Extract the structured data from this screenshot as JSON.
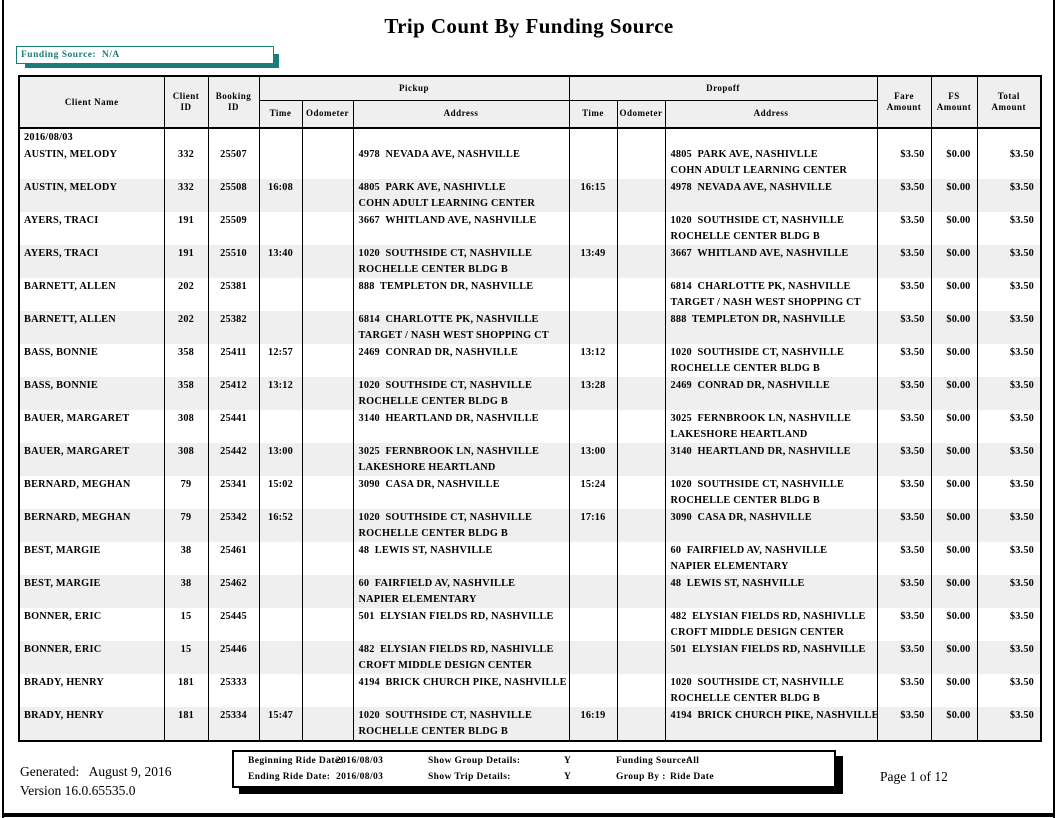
{
  "page": {
    "title": "Trip Count By Funding Source",
    "generated_line": "Generated:   August 9, 2016",
    "version_line": "Version 16.0.65535.0",
    "page_label": "Page 1 of 12"
  },
  "colors": {
    "accent_teal": "#1b7c7c",
    "row_shade": "#efefef",
    "header_shade": "#efefef"
  },
  "funding_box": {
    "label": "Funding Source:  N/A"
  },
  "table": {
    "group_headers": {
      "pickup": "Pickup",
      "dropoff": "Dropoff"
    },
    "columns": {
      "client_name": "Client Name",
      "client_id": "Client ID",
      "booking_id": "Booking ID",
      "time": "Time",
      "odometer": "Odometer",
      "address": "Address",
      "fare_amount": "Fare Amount",
      "fs_amount": "FS Amount",
      "total_amount": "Total Amount"
    },
    "group_date": "2016/08/03",
    "rows": [
      {
        "client_name": "AUSTIN, MELODY",
        "client_id": "332",
        "booking_id": "25507",
        "pickup_time": "",
        "pickup_odometer": "",
        "pickup_address_1": "4978  NEVADA AVE, NASHVILLE",
        "pickup_address_2": "",
        "dropoff_time": "",
        "dropoff_odometer": "",
        "dropoff_address_1": "4805  PARK AVE, NASHIVLLE",
        "dropoff_address_2": "COHN ADULT LEARNING CENTER",
        "fare_amount": "$3.50",
        "fs_amount": "$0.00",
        "total_amount": "$3.50"
      },
      {
        "client_name": "AUSTIN, MELODY",
        "client_id": "332",
        "booking_id": "25508",
        "pickup_time": "16:08",
        "pickup_odometer": "",
        "pickup_address_1": "4805  PARK AVE, NASHIVLLE",
        "pickup_address_2": "COHN ADULT LEARNING CENTER",
        "dropoff_time": "16:15",
        "dropoff_odometer": "",
        "dropoff_address_1": "4978  NEVADA AVE, NASHVILLE",
        "dropoff_address_2": "",
        "fare_amount": "$3.50",
        "fs_amount": "$0.00",
        "total_amount": "$3.50"
      },
      {
        "client_name": "AYERS, TRACI",
        "client_id": "191",
        "booking_id": "25509",
        "pickup_time": "",
        "pickup_odometer": "",
        "pickup_address_1": "3667  WHITLAND AVE, NASHVILLE",
        "pickup_address_2": "",
        "dropoff_time": "",
        "dropoff_odometer": "",
        "dropoff_address_1": "1020  SOUTHSIDE CT, NASHVILLE",
        "dropoff_address_2": "ROCHELLE CENTER BLDG B",
        "fare_amount": "$3.50",
        "fs_amount": "$0.00",
        "total_amount": "$3.50"
      },
      {
        "client_name": "AYERS, TRACI",
        "client_id": "191",
        "booking_id": "25510",
        "pickup_time": "13:40",
        "pickup_odometer": "",
        "pickup_address_1": "1020  SOUTHSIDE CT, NASHVILLE",
        "pickup_address_2": "ROCHELLE CENTER BLDG B",
        "dropoff_time": "13:49",
        "dropoff_odometer": "",
        "dropoff_address_1": "3667  WHITLAND AVE, NASHVILLE",
        "dropoff_address_2": "",
        "fare_amount": "$3.50",
        "fs_amount": "$0.00",
        "total_amount": "$3.50"
      },
      {
        "client_name": "BARNETT, ALLEN",
        "client_id": "202",
        "booking_id": "25381",
        "pickup_time": "",
        "pickup_odometer": "",
        "pickup_address_1": "888  TEMPLETON DR, NASHVILLE",
        "pickup_address_2": "",
        "dropoff_time": "",
        "dropoff_odometer": "",
        "dropoff_address_1": "6814  CHARLOTTE PK, NASHVILLE",
        "dropoff_address_2": "TARGET / NASH WEST SHOPPING CT",
        "fare_amount": "$3.50",
        "fs_amount": "$0.00",
        "total_amount": "$3.50"
      },
      {
        "client_name": "BARNETT, ALLEN",
        "client_id": "202",
        "booking_id": "25382",
        "pickup_time": "",
        "pickup_odometer": "",
        "pickup_address_1": "6814  CHARLOTTE PK, NASHVILLE",
        "pickup_address_2": "TARGET / NASH WEST SHOPPING CT",
        "dropoff_time": "",
        "dropoff_odometer": "",
        "dropoff_address_1": "888  TEMPLETON DR, NASHVILLE",
        "dropoff_address_2": "",
        "fare_amount": "$3.50",
        "fs_amount": "$0.00",
        "total_amount": "$3.50"
      },
      {
        "client_name": "BASS, BONNIE",
        "client_id": "358",
        "booking_id": "25411",
        "pickup_time": "12:57",
        "pickup_odometer": "",
        "pickup_address_1": "2469  CONRAD DR, NASHVILLE",
        "pickup_address_2": "",
        "dropoff_time": "13:12",
        "dropoff_odometer": "",
        "dropoff_address_1": "1020  SOUTHSIDE CT, NASHVILLE",
        "dropoff_address_2": "ROCHELLE CENTER BLDG B",
        "fare_amount": "$3.50",
        "fs_amount": "$0.00",
        "total_amount": "$3.50"
      },
      {
        "client_name": "BASS, BONNIE",
        "client_id": "358",
        "booking_id": "25412",
        "pickup_time": "13:12",
        "pickup_odometer": "",
        "pickup_address_1": "1020  SOUTHSIDE CT, NASHVILLE",
        "pickup_address_2": "ROCHELLE CENTER BLDG B",
        "dropoff_time": "13:28",
        "dropoff_odometer": "",
        "dropoff_address_1": "2469  CONRAD DR, NASHVILLE",
        "dropoff_address_2": "",
        "fare_amount": "$3.50",
        "fs_amount": "$0.00",
        "total_amount": "$3.50"
      },
      {
        "client_name": "BAUER, MARGARET",
        "client_id": "308",
        "booking_id": "25441",
        "pickup_time": "",
        "pickup_odometer": "",
        "pickup_address_1": "3140  HEARTLAND DR, NASHVILLE",
        "pickup_address_2": "",
        "dropoff_time": "",
        "dropoff_odometer": "",
        "dropoff_address_1": "3025  FERNBROOK LN, NASHVILLE",
        "dropoff_address_2": "LAKESHORE HEARTLAND",
        "fare_amount": "$3.50",
        "fs_amount": "$0.00",
        "total_amount": "$3.50"
      },
      {
        "client_name": "BAUER, MARGARET",
        "client_id": "308",
        "booking_id": "25442",
        "pickup_time": "13:00",
        "pickup_odometer": "",
        "pickup_address_1": "3025  FERNBROOK LN, NASHVILLE",
        "pickup_address_2": "LAKESHORE HEARTLAND",
        "dropoff_time": "13:00",
        "dropoff_odometer": "",
        "dropoff_address_1": "3140  HEARTLAND DR, NASHVILLE",
        "dropoff_address_2": "",
        "fare_amount": "$3.50",
        "fs_amount": "$0.00",
        "total_amount": "$3.50"
      },
      {
        "client_name": "BERNARD, MEGHAN",
        "client_id": "79",
        "booking_id": "25341",
        "pickup_time": "15:02",
        "pickup_odometer": "",
        "pickup_address_1": "3090  CASA DR, NASHVILLE",
        "pickup_address_2": "",
        "dropoff_time": "15:24",
        "dropoff_odometer": "",
        "dropoff_address_1": "1020  SOUTHSIDE CT, NASHVILLE",
        "dropoff_address_2": "ROCHELLE CENTER BLDG B",
        "fare_amount": "$3.50",
        "fs_amount": "$0.00",
        "total_amount": "$3.50"
      },
      {
        "client_name": "BERNARD, MEGHAN",
        "client_id": "79",
        "booking_id": "25342",
        "pickup_time": "16:52",
        "pickup_odometer": "",
        "pickup_address_1": "1020  SOUTHSIDE CT, NASHVILLE",
        "pickup_address_2": "ROCHELLE CENTER BLDG B",
        "dropoff_time": "17:16",
        "dropoff_odometer": "",
        "dropoff_address_1": "3090  CASA DR, NASHVILLE",
        "dropoff_address_2": "",
        "fare_amount": "$3.50",
        "fs_amount": "$0.00",
        "total_amount": "$3.50"
      },
      {
        "client_name": "BEST, MARGIE",
        "client_id": "38",
        "booking_id": "25461",
        "pickup_time": "",
        "pickup_odometer": "",
        "pickup_address_1": "48  LEWIS ST, NASHVILLE",
        "pickup_address_2": "",
        "dropoff_time": "",
        "dropoff_odometer": "",
        "dropoff_address_1": "60  FAIRFIELD AV, NASHVILLE",
        "dropoff_address_2": "NAPIER ELEMENTARY",
        "fare_amount": "$3.50",
        "fs_amount": "$0.00",
        "total_amount": "$3.50"
      },
      {
        "client_name": "BEST, MARGIE",
        "client_id": "38",
        "booking_id": "25462",
        "pickup_time": "",
        "pickup_odometer": "",
        "pickup_address_1": "60  FAIRFIELD AV, NASHVILLE",
        "pickup_address_2": "NAPIER ELEMENTARY",
        "dropoff_time": "",
        "dropoff_odometer": "",
        "dropoff_address_1": "48  LEWIS ST, NASHVILLE",
        "dropoff_address_2": "",
        "fare_amount": "$3.50",
        "fs_amount": "$0.00",
        "total_amount": "$3.50"
      },
      {
        "client_name": "BONNER, ERIC",
        "client_id": "15",
        "booking_id": "25445",
        "pickup_time": "",
        "pickup_odometer": "",
        "pickup_address_1": "501  ELYSIAN FIELDS RD, NASHVILLE",
        "pickup_address_2": "",
        "dropoff_time": "",
        "dropoff_odometer": "",
        "dropoff_address_1": "482  ELYSIAN FIELDS RD, NASHIVLLE",
        "dropoff_address_2": "CROFT MIDDLE DESIGN CENTER",
        "fare_amount": "$3.50",
        "fs_amount": "$0.00",
        "total_amount": "$3.50"
      },
      {
        "client_name": "BONNER, ERIC",
        "client_id": "15",
        "booking_id": "25446",
        "pickup_time": "",
        "pickup_odometer": "",
        "pickup_address_1": "482  ELYSIAN FIELDS RD, NASHIVLLE",
        "pickup_address_2": "CROFT MIDDLE DESIGN CENTER",
        "dropoff_time": "",
        "dropoff_odometer": "",
        "dropoff_address_1": "501  ELYSIAN FIELDS RD, NASHVILLE",
        "dropoff_address_2": "",
        "fare_amount": "$3.50",
        "fs_amount": "$0.00",
        "total_amount": "$3.50"
      },
      {
        "client_name": "BRADY, HENRY",
        "client_id": "181",
        "booking_id": "25333",
        "pickup_time": "",
        "pickup_odometer": "",
        "pickup_address_1": "4194  BRICK CHURCH PIKE, NASHVILLE",
        "pickup_address_2": "",
        "dropoff_time": "",
        "dropoff_odometer": "",
        "dropoff_address_1": "1020  SOUTHSIDE CT, NASHVILLE",
        "dropoff_address_2": "ROCHELLE CENTER BLDG B",
        "fare_amount": "$3.50",
        "fs_amount": "$0.00",
        "total_amount": "$3.50"
      },
      {
        "client_name": "BRADY, HENRY",
        "client_id": "181",
        "booking_id": "25334",
        "pickup_time": "15:47",
        "pickup_odometer": "",
        "pickup_address_1": "1020  SOUTHSIDE CT, NASHVILLE",
        "pickup_address_2": "ROCHELLE CENTER BLDG B",
        "dropoff_time": "16:19",
        "dropoff_odometer": "",
        "dropoff_address_1": "4194  BRICK CHURCH PIKE, NASHVILLE",
        "dropoff_address_2": "",
        "fare_amount": "$3.50",
        "fs_amount": "$0.00",
        "total_amount": "$3.50"
      }
    ]
  },
  "params_box": {
    "beginning_ride_date_label": "Beginning Ride Date:",
    "beginning_ride_date": "2016/08/03",
    "ending_ride_date_label": "Ending Ride Date:",
    "ending_ride_date": "2016/08/03",
    "show_group_details_label": "Show Group Details:",
    "show_group_details": "Y",
    "show_trip_details_label": "Show Trip Details:",
    "show_trip_details": "Y",
    "funding_source_label": "Funding Source:",
    "funding_source": "All",
    "group_by_label": "Group By :",
    "group_by": "Ride Date"
  }
}
